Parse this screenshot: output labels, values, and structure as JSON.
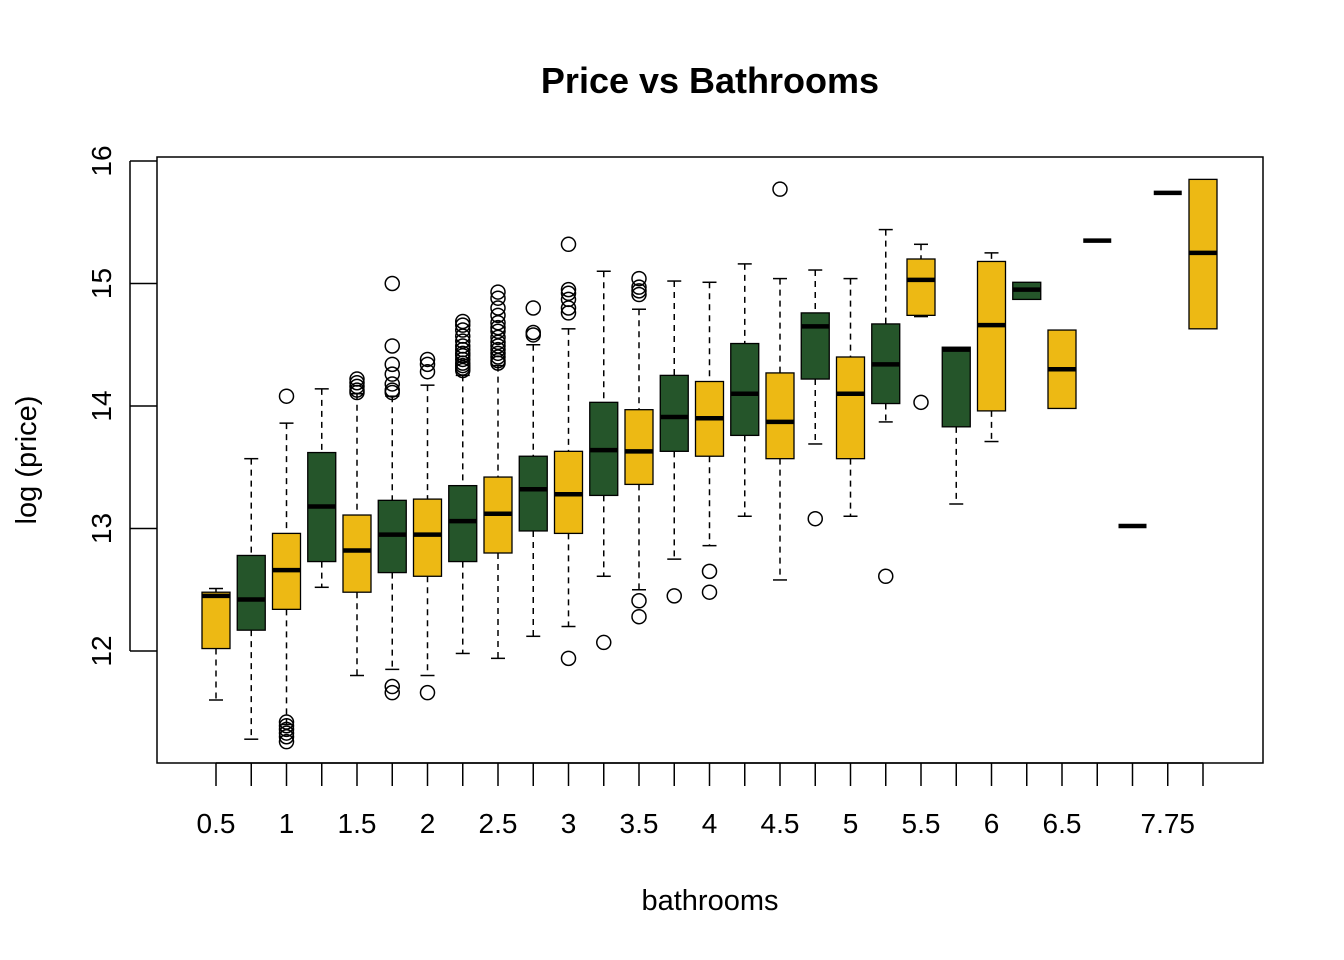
{
  "chart_data": {
    "type": "boxplot",
    "title": "Price vs Bathrooms",
    "xlabel": "bathrooms",
    "ylabel": "log (price)",
    "ylim": [
      11.05,
      16.05
    ],
    "yticks": [
      12,
      13,
      14,
      15,
      16
    ],
    "colors": {
      "yellow": "#EDB914",
      "green": "#25552A"
    },
    "categories": [
      "0.5",
      "0.75",
      "1",
      "1.25",
      "1.5",
      "1.75",
      "2",
      "2.25",
      "2.5",
      "2.75",
      "3",
      "3.25",
      "3.5",
      "3.75",
      "4",
      "4.25",
      "4.5",
      "4.75",
      "5",
      "5.25",
      "5.5",
      "5.75",
      "6",
      "6.25",
      "6.5",
      "6.75",
      "7.5",
      "7.75",
      "8"
    ],
    "tick_labels": [
      "0.5",
      "",
      "1",
      "",
      "1.5",
      "",
      "2",
      "",
      "2.5",
      "",
      "3",
      "",
      "3.5",
      "",
      "4",
      "",
      "4.5",
      "",
      "5",
      "",
      "5.5",
      "",
      "6",
      "",
      "6.5",
      "",
      "",
      "7.75",
      ""
    ],
    "boxes": [
      {
        "cat": "0.5",
        "fill": "yellow",
        "min": 11.6,
        "q1": 12.02,
        "med": 12.45,
        "q3": 12.48,
        "max": 12.51,
        "out": []
      },
      {
        "cat": "0.75",
        "fill": "green",
        "min": 11.28,
        "q1": 12.17,
        "med": 12.42,
        "q3": 12.78,
        "max": 13.57,
        "out": []
      },
      {
        "cat": "1",
        "fill": "yellow",
        "min": 11.4,
        "q1": 12.34,
        "med": 12.66,
        "q3": 12.96,
        "max": 13.86,
        "out": [
          14.08,
          11.42,
          11.39,
          11.36,
          11.33,
          11.3,
          11.26
        ]
      },
      {
        "cat": "1.25",
        "fill": "green",
        "min": 12.52,
        "q1": 12.73,
        "med": 13.18,
        "q3": 13.62,
        "max": 14.14,
        "out": []
      },
      {
        "cat": "1.5",
        "fill": "yellow",
        "min": 11.8,
        "q1": 12.48,
        "med": 12.82,
        "q3": 13.11,
        "max": 14.1,
        "out": [
          14.22,
          14.19,
          14.16,
          14.13,
          14.11
        ]
      },
      {
        "cat": "1.75",
        "fill": "green",
        "min": 11.85,
        "q1": 12.64,
        "med": 12.95,
        "q3": 13.23,
        "max": 14.08,
        "out": [
          15.0,
          14.49,
          14.34,
          14.26,
          14.18,
          14.13,
          14.11,
          11.71,
          11.66
        ]
      },
      {
        "cat": "2",
        "fill": "yellow",
        "min": 11.8,
        "q1": 12.61,
        "med": 12.95,
        "q3": 13.24,
        "max": 14.17,
        "out": [
          14.38,
          14.34,
          14.28,
          11.66
        ]
      },
      {
        "cat": "2.25",
        "fill": "green",
        "min": 11.98,
        "q1": 12.73,
        "med": 13.06,
        "q3": 13.35,
        "max": 14.25,
        "out": [
          14.69,
          14.66,
          14.62,
          14.57,
          14.53,
          14.49,
          14.46,
          14.43,
          14.41,
          14.38,
          14.35,
          14.33,
          14.31,
          14.29
        ]
      },
      {
        "cat": "2.5",
        "fill": "yellow",
        "min": 11.94,
        "q1": 12.8,
        "med": 13.12,
        "q3": 13.42,
        "max": 14.33,
        "out": [
          14.93,
          14.88,
          14.8,
          14.74,
          14.68,
          14.64,
          14.61,
          14.56,
          14.52,
          14.49,
          14.46,
          14.43,
          14.4,
          14.37,
          14.35
        ]
      },
      {
        "cat": "2.75",
        "fill": "green",
        "min": 12.12,
        "q1": 12.98,
        "med": 13.32,
        "q3": 13.59,
        "max": 14.5,
        "out": [
          14.8,
          14.6,
          14.58
        ]
      },
      {
        "cat": "3",
        "fill": "yellow",
        "min": 12.2,
        "q1": 12.96,
        "med": 13.28,
        "q3": 13.63,
        "max": 14.63,
        "out": [
          15.32,
          14.95,
          14.92,
          14.87,
          14.8,
          14.76,
          11.94
        ]
      },
      {
        "cat": "3.25",
        "fill": "green",
        "min": 12.61,
        "q1": 13.27,
        "med": 13.64,
        "q3": 14.03,
        "max": 15.1,
        "out": [
          12.07
        ]
      },
      {
        "cat": "3.5",
        "fill": "yellow",
        "min": 12.5,
        "q1": 13.36,
        "med": 13.63,
        "q3": 13.97,
        "max": 14.79,
        "out": [
          15.04,
          14.97,
          14.94,
          14.91,
          12.41,
          12.28
        ]
      },
      {
        "cat": "3.75",
        "fill": "green",
        "min": 12.75,
        "q1": 13.63,
        "med": 13.91,
        "q3": 14.25,
        "max": 15.02,
        "out": [
          12.45
        ]
      },
      {
        "cat": "4",
        "fill": "yellow",
        "min": 12.86,
        "q1": 13.59,
        "med": 13.9,
        "q3": 14.2,
        "max": 15.01,
        "out": [
          12.65,
          12.48
        ]
      },
      {
        "cat": "4.25",
        "fill": "green",
        "min": 13.1,
        "q1": 13.76,
        "med": 14.1,
        "q3": 14.51,
        "max": 15.16,
        "out": []
      },
      {
        "cat": "4.5",
        "fill": "yellow",
        "min": 12.58,
        "q1": 13.57,
        "med": 13.87,
        "q3": 14.27,
        "max": 15.04,
        "out": [
          15.77
        ]
      },
      {
        "cat": "4.75",
        "fill": "green",
        "min": 13.69,
        "q1": 14.22,
        "med": 14.65,
        "q3": 14.76,
        "max": 15.11,
        "out": [
          13.08
        ]
      },
      {
        "cat": "5",
        "fill": "yellow",
        "min": 13.1,
        "q1": 13.57,
        "med": 14.1,
        "q3": 14.4,
        "max": 15.04,
        "out": []
      },
      {
        "cat": "5.25",
        "fill": "green",
        "min": 13.87,
        "q1": 14.02,
        "med": 14.34,
        "q3": 14.67,
        "max": 15.44,
        "out": [
          12.61
        ]
      },
      {
        "cat": "5.5",
        "fill": "yellow",
        "min": 14.73,
        "q1": 14.74,
        "med": 15.03,
        "q3": 15.2,
        "max": 15.32,
        "out": [
          14.03
        ]
      },
      {
        "cat": "5.75",
        "fill": "green",
        "min": 13.2,
        "q1": 13.83,
        "med": 14.46,
        "q3": 14.48,
        "max": 14.48,
        "out": []
      },
      {
        "cat": "6",
        "fill": "yellow",
        "min": 13.71,
        "q1": 13.96,
        "med": 14.66,
        "q3": 15.18,
        "max": 15.25,
        "out": []
      },
      {
        "cat": "6.25",
        "fill": "green",
        "min": 14.87,
        "q1": 14.87,
        "med": 14.95,
        "q3": 15.01,
        "max": 15.01,
        "out": []
      },
      {
        "cat": "6.5",
        "fill": "yellow",
        "min": 13.98,
        "q1": 13.98,
        "med": 14.3,
        "q3": 14.62,
        "max": 14.62,
        "out": []
      },
      {
        "cat": "6.75",
        "fill": "green",
        "min": 15.35,
        "q1": 15.35,
        "med": 15.35,
        "q3": 15.35,
        "max": 15.35,
        "out": []
      },
      {
        "cat": "7.5",
        "fill": "green",
        "min": 13.02,
        "q1": 13.02,
        "med": 13.02,
        "q3": 13.02,
        "max": 13.02,
        "out": []
      },
      {
        "cat": "7.75",
        "fill": "green",
        "min": 15.74,
        "q1": 15.74,
        "med": 15.74,
        "q3": 15.74,
        "max": 15.74,
        "out": []
      },
      {
        "cat": "8",
        "fill": "yellow",
        "min": 14.63,
        "q1": 14.63,
        "med": 15.25,
        "q3": 15.85,
        "max": 15.85,
        "out": []
      }
    ]
  }
}
